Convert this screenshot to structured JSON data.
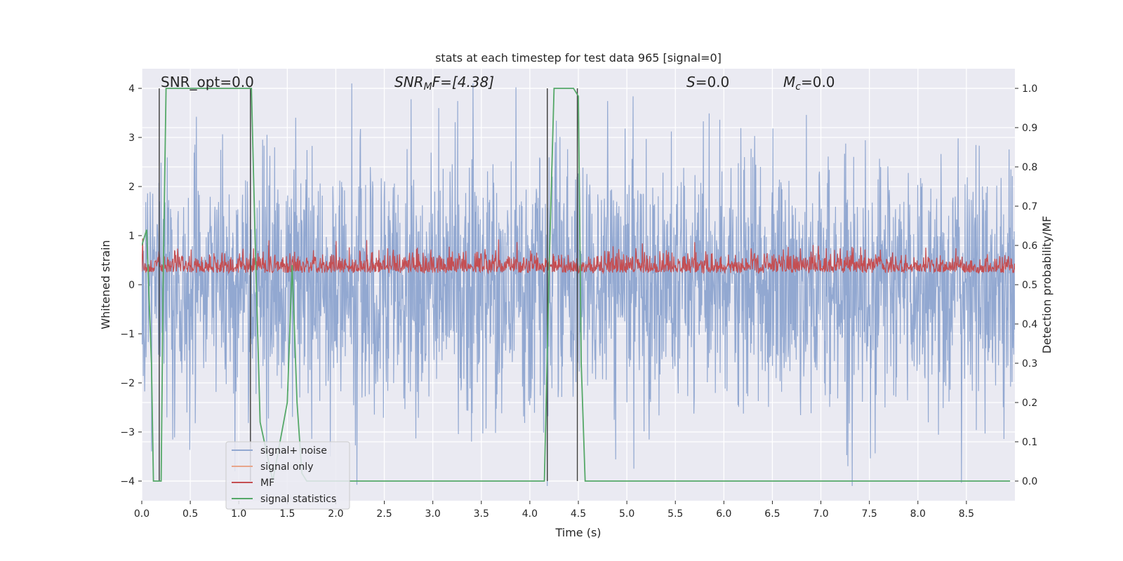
{
  "chart_data": {
    "type": "line",
    "title": "stats at each timestep for test data 965 [signal=0]",
    "xlabel": "Time (s)",
    "ylabel_left": "Whitened strain",
    "ylabel_right": "Detection probability/MF",
    "xlim": [
      0.0,
      9.0
    ],
    "ylim_left": [
      -4.4,
      4.4
    ],
    "ylim_right": [
      -0.05,
      1.05
    ],
    "xticks": [
      "0.0",
      "0.5",
      "1.0",
      "1.5",
      "2.0",
      "2.5",
      "3.0",
      "3.5",
      "4.0",
      "4.5",
      "5.0",
      "5.5",
      "6.0",
      "6.5",
      "7.0",
      "7.5",
      "8.0",
      "8.5"
    ],
    "yticks_left": [
      "4",
      "3",
      "2",
      "1",
      "0",
      "−1",
      "−2",
      "−3",
      "−4"
    ],
    "yticks_right": [
      "1.0",
      "0.9",
      "0.8",
      "0.7",
      "0.6",
      "0.5",
      "0.4",
      "0.3",
      "0.2",
      "0.1",
      "0.0"
    ],
    "grid": true,
    "legend_location": "lower-left",
    "annotations": {
      "snr_opt": "SNR_opt=0.0",
      "snr_mf_main": "SNR",
      "snr_mf_sub": "M",
      "snr_mf_rest": "F=[4.38]",
      "s_main": "S",
      "s_rest": "=0.0",
      "mc_main": "M",
      "mc_sub": "c",
      "mc_rest": "=0.0"
    },
    "series": [
      {
        "name": "signal+ noise",
        "color": "#92a8d1",
        "description_values": "whitened noise, approx within [-4, 4]"
      },
      {
        "name": "signal only",
        "color": "#e8a58a",
        "values": []
      },
      {
        "name": "MF",
        "color": "#c44e52",
        "range_right_axis": [
          0.5,
          0.62
        ]
      },
      {
        "name": "signal statistics",
        "color": "#55a868",
        "x": [
          0.0,
          0.05,
          0.1,
          0.12,
          0.17,
          0.2,
          0.22,
          0.25,
          0.3,
          1.1,
          1.13,
          1.17,
          1.22,
          1.35,
          1.5,
          1.55,
          1.6,
          1.65,
          1.7,
          4.15,
          4.2,
          4.25,
          4.45,
          4.5,
          4.53,
          4.57,
          8.95
        ],
        "y": [
          0.6,
          0.64,
          0.3,
          0.0,
          0.0,
          0.0,
          0.5,
          1.0,
          1.0,
          1.0,
          1.0,
          0.6,
          0.15,
          0.0,
          0.2,
          0.55,
          0.2,
          0.02,
          0.0,
          0.0,
          0.55,
          1.0,
          1.0,
          0.98,
          0.3,
          0.0,
          0.0
        ]
      }
    ],
    "event_lines_x": [
      0.18,
      1.12,
      4.18,
      4.49
    ],
    "colors": {
      "plot_bg": "#eaeaf2",
      "grid": "#ffffff",
      "noise": "#92a8d1",
      "signal": "#e8a58a",
      "mf": "#c44e52",
      "stats": "#55a868",
      "vline": "#444444"
    }
  }
}
